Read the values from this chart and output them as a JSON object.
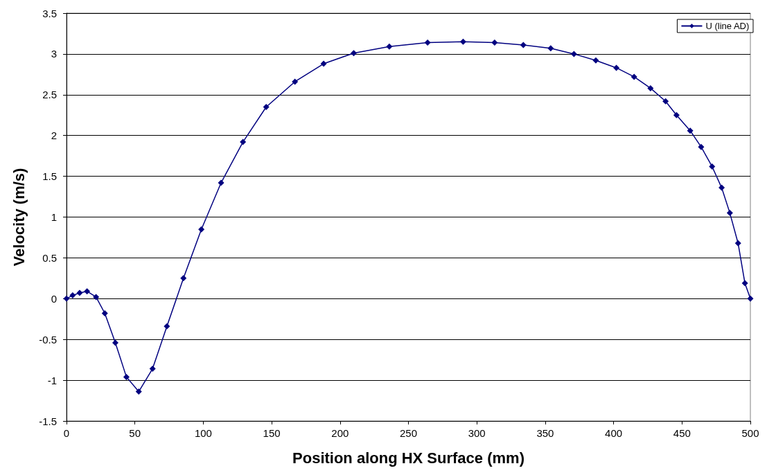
{
  "chart_data": {
    "type": "line",
    "xlabel": "Position along HX Surface (mm)",
    "ylabel": "Velocity (m/s)",
    "x": [
      0,
      4.5,
      9.6,
      15,
      21.6,
      28,
      35.7,
      43.8,
      52.8,
      62.9,
      73.4,
      85.5,
      98.6,
      113,
      129,
      146,
      167,
      188,
      210,
      236,
      264,
      290,
      313,
      334,
      354,
      371,
      387,
      402,
      415,
      427,
      438,
      446,
      456,
      464,
      472,
      479,
      485,
      491,
      496,
      500
    ],
    "series": [
      {
        "name": "U (line AD)",
        "color": "#000080",
        "values": [
          0,
          0.04,
          0.07,
          0.09,
          0.02,
          -0.18,
          -0.54,
          -0.96,
          -1.14,
          -0.86,
          -0.34,
          0.25,
          0.85,
          1.42,
          1.92,
          2.35,
          2.66,
          2.88,
          3.01,
          3.09,
          3.14,
          3.15,
          3.14,
          3.11,
          3.07,
          3.0,
          2.92,
          2.83,
          2.72,
          2.58,
          2.42,
          2.25,
          2.06,
          1.86,
          1.62,
          1.36,
          1.05,
          0.68,
          0.19,
          0
        ]
      }
    ],
    "xlim": [
      0,
      500
    ],
    "xticks": [
      0,
      50,
      100,
      150,
      200,
      250,
      300,
      350,
      400,
      450,
      500
    ],
    "ylim": [
      -1.5,
      3.5
    ],
    "yticks": [
      -1.5,
      -1,
      -0.5,
      0,
      0.5,
      1,
      1.5,
      2,
      2.5,
      3,
      3.5
    ],
    "grid": "y",
    "legend": "top right",
    "marker": "diamond",
    "line_style": "solid"
  }
}
